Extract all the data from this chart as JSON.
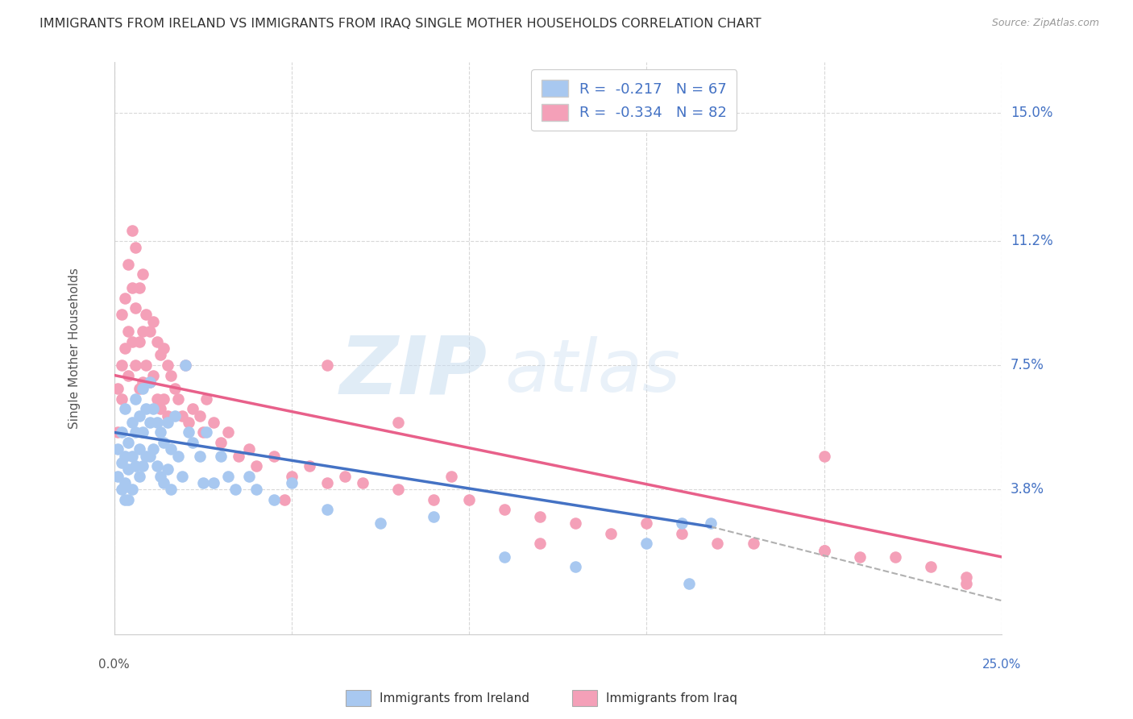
{
  "title": "IMMIGRANTS FROM IRELAND VS IMMIGRANTS FROM IRAQ SINGLE MOTHER HOUSEHOLDS CORRELATION CHART",
  "source": "Source: ZipAtlas.com",
  "ylabel": "Single Mother Households",
  "ytick_labels": [
    "15.0%",
    "11.2%",
    "7.5%",
    "3.8%"
  ],
  "ytick_values": [
    0.15,
    0.112,
    0.075,
    0.038
  ],
  "xlim": [
    0.0,
    0.25
  ],
  "ylim": [
    -0.005,
    0.165
  ],
  "legend_ireland": "R =  -0.217   N = 67",
  "legend_iraq": "R =  -0.334   N = 82",
  "color_ireland": "#a8c8f0",
  "color_iraq": "#f4a0b8",
  "line_color_ireland": "#4472c4",
  "line_color_iraq": "#e8608a",
  "ireland_line_x": [
    0.0,
    0.168
  ],
  "ireland_line_y": [
    0.055,
    0.027
  ],
  "iraq_line_x": [
    0.0,
    0.25
  ],
  "iraq_line_y": [
    0.072,
    0.018
  ],
  "extension_line_x": [
    0.168,
    0.25
  ],
  "extension_line_y": [
    0.027,
    0.005
  ],
  "ireland_scatter_x": [
    0.001,
    0.001,
    0.002,
    0.002,
    0.002,
    0.003,
    0.003,
    0.003,
    0.003,
    0.004,
    0.004,
    0.004,
    0.005,
    0.005,
    0.005,
    0.006,
    0.006,
    0.006,
    0.007,
    0.007,
    0.007,
    0.008,
    0.008,
    0.008,
    0.009,
    0.009,
    0.01,
    0.01,
    0.01,
    0.011,
    0.011,
    0.012,
    0.012,
    0.013,
    0.013,
    0.014,
    0.014,
    0.015,
    0.015,
    0.016,
    0.016,
    0.017,
    0.018,
    0.019,
    0.02,
    0.021,
    0.022,
    0.024,
    0.025,
    0.026,
    0.028,
    0.03,
    0.032,
    0.034,
    0.038,
    0.04,
    0.045,
    0.05,
    0.06,
    0.075,
    0.09,
    0.11,
    0.13,
    0.15,
    0.16,
    0.162,
    0.168
  ],
  "ireland_scatter_y": [
    0.05,
    0.042,
    0.046,
    0.038,
    0.055,
    0.048,
    0.04,
    0.035,
    0.062,
    0.052,
    0.044,
    0.035,
    0.058,
    0.048,
    0.038,
    0.065,
    0.055,
    0.045,
    0.06,
    0.05,
    0.042,
    0.068,
    0.055,
    0.045,
    0.062,
    0.048,
    0.07,
    0.058,
    0.048,
    0.062,
    0.05,
    0.058,
    0.045,
    0.055,
    0.042,
    0.052,
    0.04,
    0.058,
    0.044,
    0.05,
    0.038,
    0.06,
    0.048,
    0.042,
    0.075,
    0.055,
    0.052,
    0.048,
    0.04,
    0.055,
    0.04,
    0.048,
    0.042,
    0.038,
    0.042,
    0.038,
    0.035,
    0.04,
    0.032,
    0.028,
    0.03,
    0.018,
    0.015,
    0.022,
    0.028,
    0.01,
    0.028
  ],
  "iraq_scatter_x": [
    0.001,
    0.001,
    0.002,
    0.002,
    0.002,
    0.003,
    0.003,
    0.004,
    0.004,
    0.004,
    0.005,
    0.005,
    0.005,
    0.006,
    0.006,
    0.006,
    0.007,
    0.007,
    0.007,
    0.008,
    0.008,
    0.008,
    0.009,
    0.009,
    0.01,
    0.01,
    0.011,
    0.011,
    0.012,
    0.012,
    0.013,
    0.013,
    0.014,
    0.014,
    0.015,
    0.015,
    0.016,
    0.017,
    0.018,
    0.019,
    0.02,
    0.021,
    0.022,
    0.024,
    0.025,
    0.026,
    0.028,
    0.03,
    0.032,
    0.035,
    0.038,
    0.04,
    0.045,
    0.05,
    0.055,
    0.06,
    0.065,
    0.07,
    0.08,
    0.09,
    0.1,
    0.11,
    0.12,
    0.13,
    0.14,
    0.15,
    0.16,
    0.17,
    0.18,
    0.2,
    0.21,
    0.22,
    0.23,
    0.24,
    0.06,
    0.08,
    0.095,
    0.2,
    0.24,
    0.048,
    0.12,
    0.2
  ],
  "iraq_scatter_y": [
    0.068,
    0.055,
    0.075,
    0.065,
    0.09,
    0.095,
    0.08,
    0.105,
    0.085,
    0.072,
    0.115,
    0.098,
    0.082,
    0.11,
    0.092,
    0.075,
    0.098,
    0.082,
    0.068,
    0.102,
    0.085,
    0.07,
    0.09,
    0.075,
    0.085,
    0.07,
    0.088,
    0.072,
    0.082,
    0.065,
    0.078,
    0.062,
    0.08,
    0.065,
    0.075,
    0.06,
    0.072,
    0.068,
    0.065,
    0.06,
    0.075,
    0.058,
    0.062,
    0.06,
    0.055,
    0.065,
    0.058,
    0.052,
    0.055,
    0.048,
    0.05,
    0.045,
    0.048,
    0.042,
    0.045,
    0.04,
    0.042,
    0.04,
    0.038,
    0.035,
    0.035,
    0.032,
    0.03,
    0.028,
    0.025,
    0.028,
    0.025,
    0.022,
    0.022,
    0.02,
    0.018,
    0.018,
    0.015,
    0.012,
    0.075,
    0.058,
    0.042,
    0.048,
    0.01,
    0.035,
    0.022,
    0.02
  ]
}
